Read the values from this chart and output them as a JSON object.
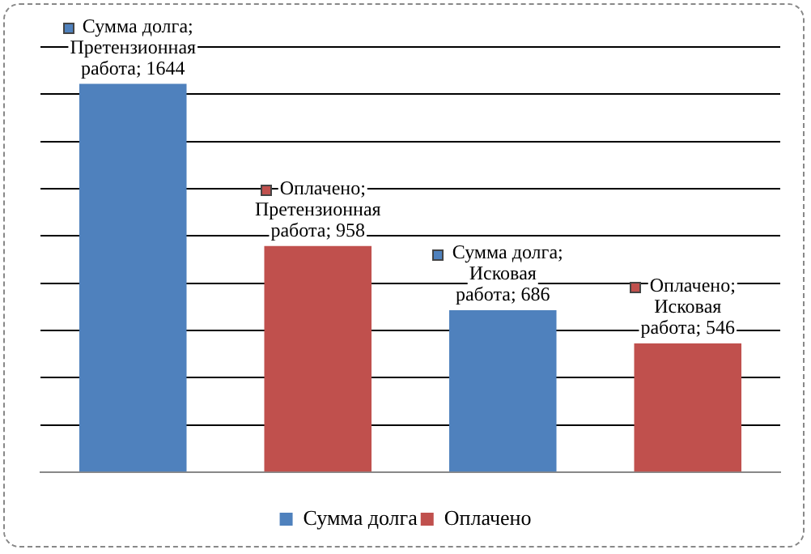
{
  "chart_data": {
    "type": "bar",
    "categories": [
      null,
      null
    ],
    "series": [
      {
        "name": "Сумма долга",
        "color": "#4f81bd",
        "values": [
          1644,
          686
        ],
        "value_labels": [
          "Сумма долга; Претензионная работа; 1644",
          "Сумма долга; Исковая работа; 686"
        ]
      },
      {
        "name": "Оплачено",
        "color": "#c0504d",
        "values": [
          958,
          546
        ],
        "value_labels": [
          "Оплачено; Претензионная работа; 958",
          "Оплачено; Исковая работа; 546"
        ]
      }
    ],
    "ylim": [
      0,
      1800
    ],
    "yticks": [
      {
        "value": 0,
        "label": null
      },
      {
        "value": 200,
        "label": null
      },
      {
        "value": 400,
        "label": null
      },
      {
        "value": 600,
        "label": null
      },
      {
        "value": 800,
        "label": null
      },
      {
        "value": 1000,
        "label": null
      },
      {
        "value": 1200,
        "label": null
      },
      {
        "value": 1400,
        "label": null
      },
      {
        "value": 1600,
        "label": null
      },
      {
        "value": 1800,
        "label": null
      }
    ],
    "grid": "y",
    "legend": "bottom"
  }
}
